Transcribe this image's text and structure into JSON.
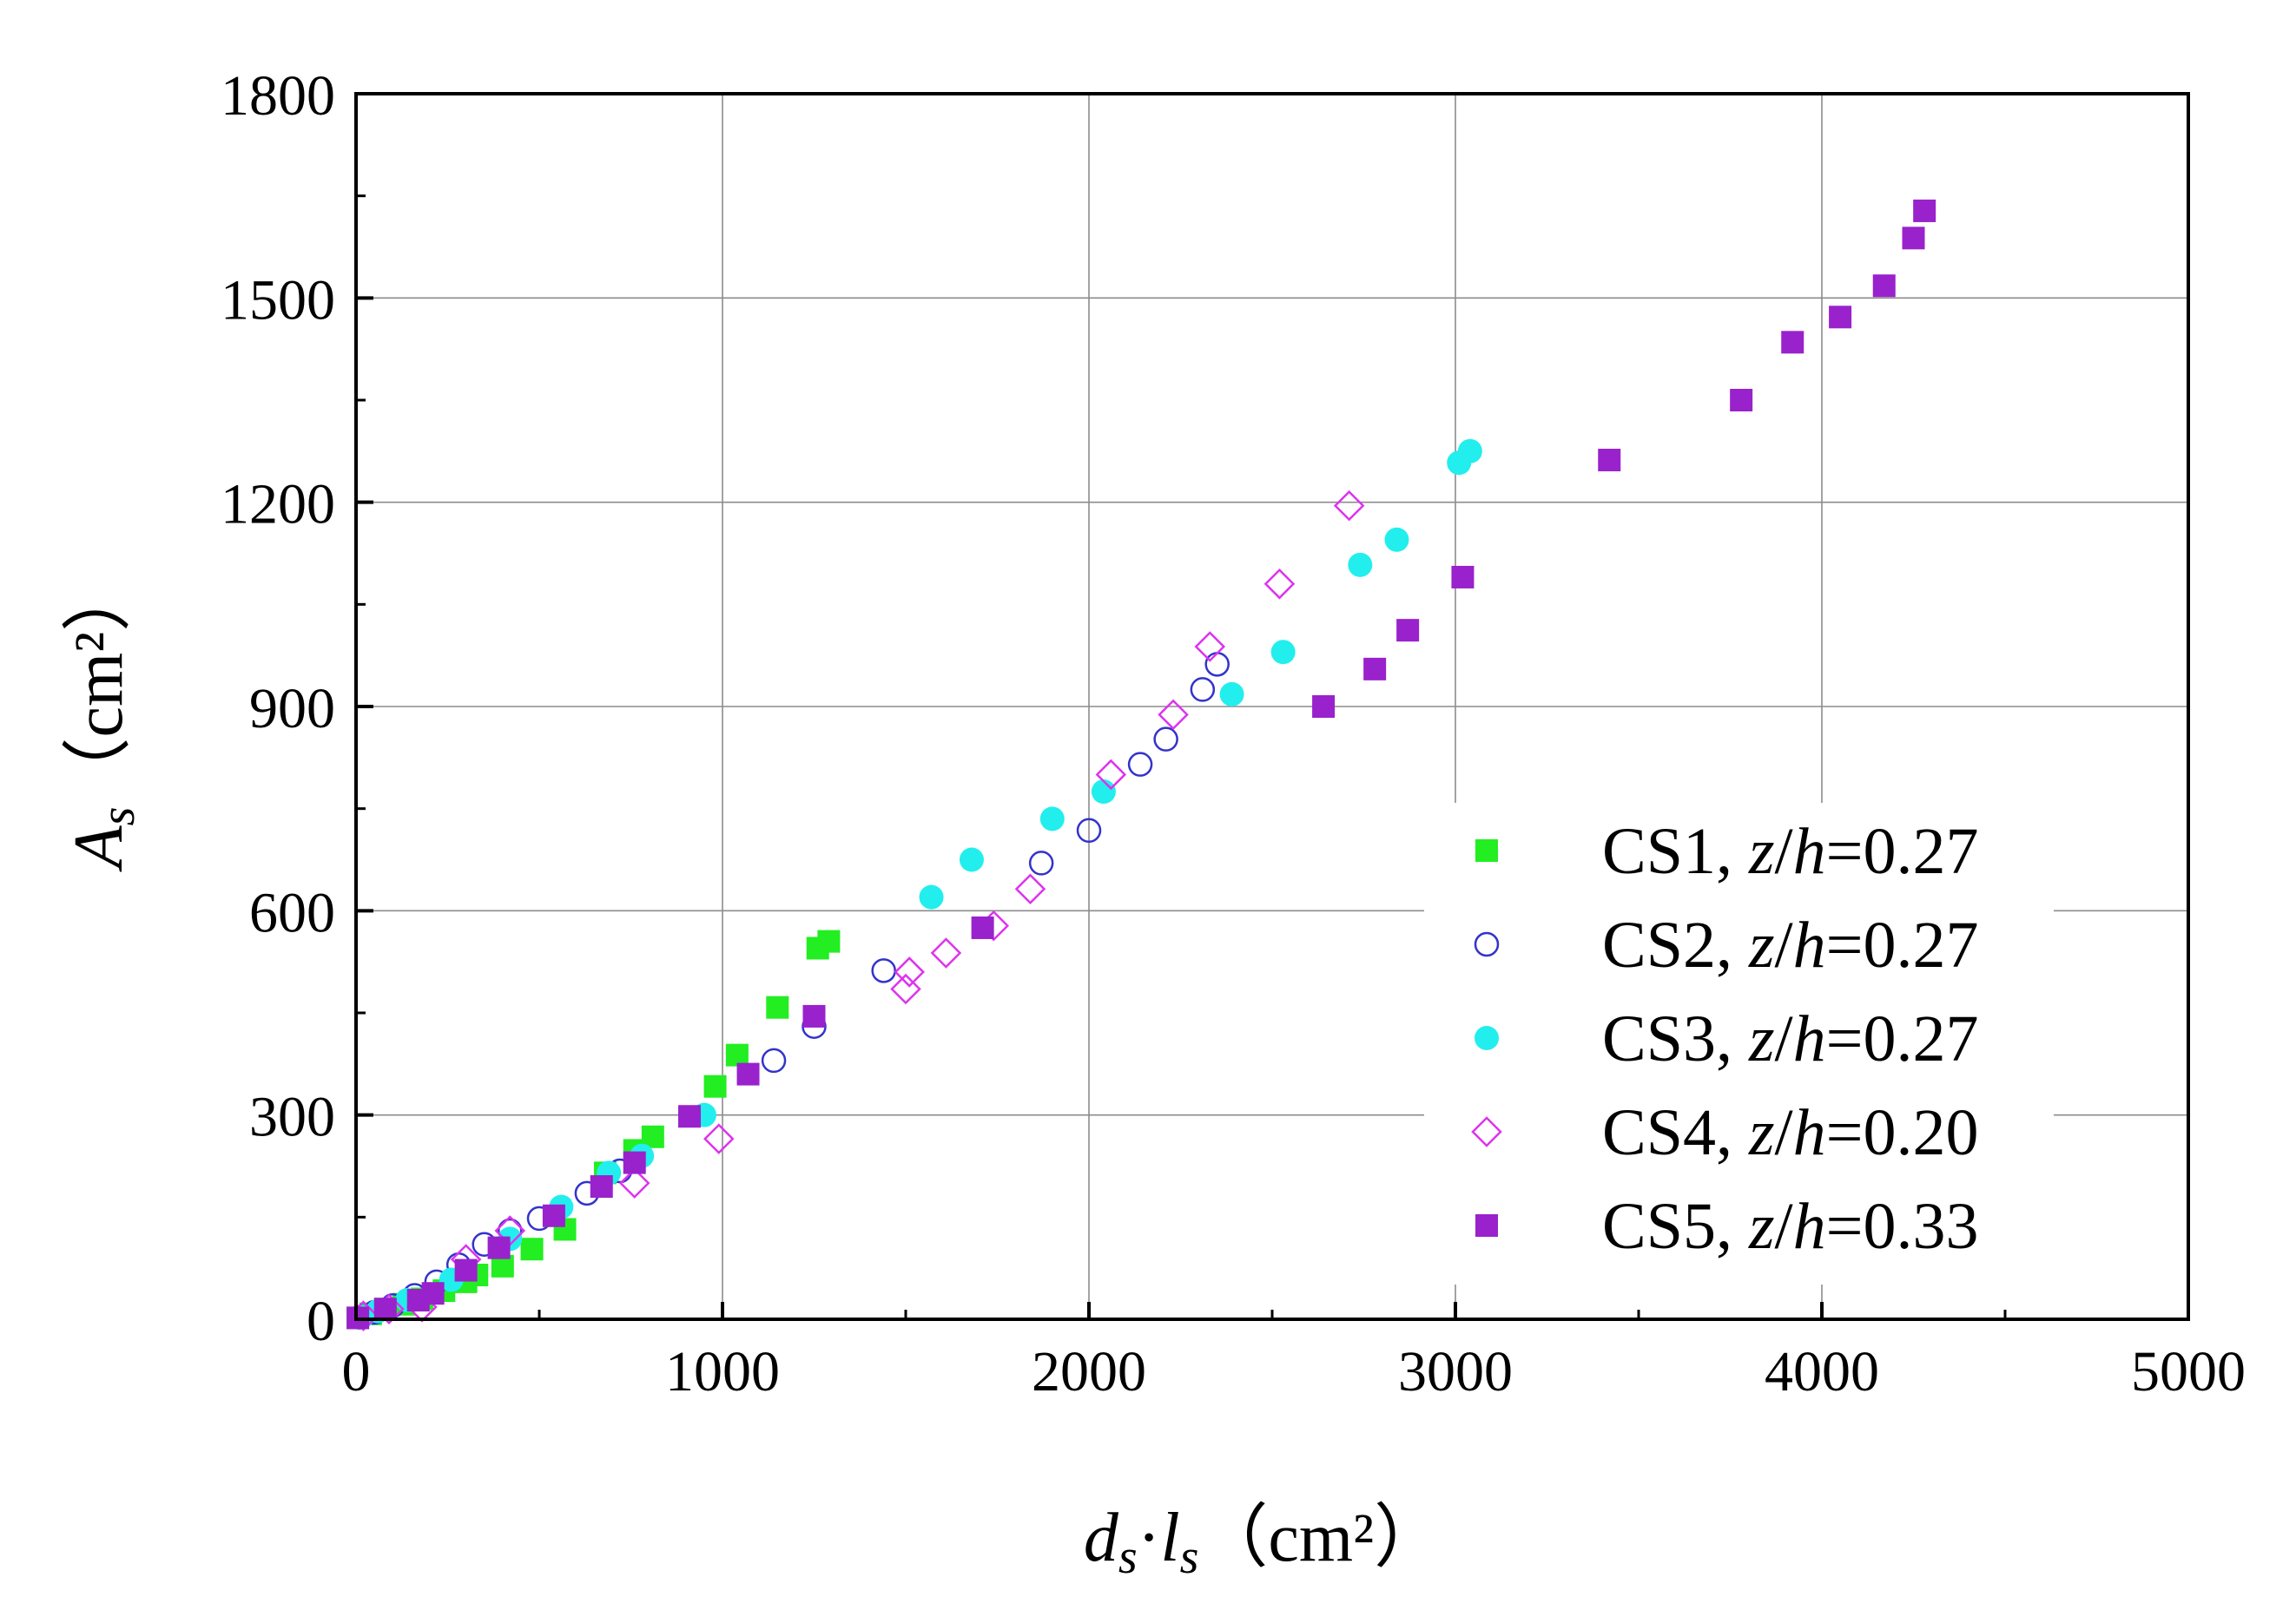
{
  "chart_data": {
    "type": "scatter",
    "title": "",
    "xlabel": "d_s·l_s （cm²）",
    "ylabel": "A_s （cm²）",
    "xlim": [
      0,
      5000
    ],
    "ylim": [
      0,
      1800
    ],
    "grid": true,
    "legend_position": "bottom-right",
    "x_ticks": [
      0,
      1000,
      2000,
      3000,
      4000,
      5000
    ],
    "x_tick_labels": [
      "0",
      "1000",
      "2000",
      "3000",
      "4000",
      "5000"
    ],
    "y_ticks": [
      0,
      300,
      600,
      900,
      1200,
      1500,
      1800
    ],
    "y_tick_labels": [
      "0",
      "300",
      "600",
      "900",
      "1200",
      "1500",
      "1800"
    ],
    "series": [
      {
        "name": "CS1, z/h=0.27",
        "label_prefix": "CS1, ",
        "label_var1": "z",
        "label_slash": "/",
        "label_var2": "h",
        "label_value": "=0.27",
        "marker": "square-filled",
        "color": "#22ee22",
        "points": [
          [
            5,
            2
          ],
          [
            40,
            8
          ],
          [
            80,
            15
          ],
          [
            130,
            22
          ],
          [
            180,
            30
          ],
          [
            240,
            42
          ],
          [
            300,
            55
          ],
          [
            330,
            65
          ],
          [
            400,
            78
          ],
          [
            480,
            103
          ],
          [
            570,
            132
          ],
          [
            680,
            215
          ],
          [
            760,
            248
          ],
          [
            810,
            268
          ],
          [
            980,
            342
          ],
          [
            1040,
            388
          ],
          [
            1150,
            458
          ],
          [
            1260,
            545
          ],
          [
            1290,
            555
          ]
        ]
      },
      {
        "name": "CS2, z/h=0.27",
        "label_prefix": "CS2, ",
        "label_var1": "z",
        "label_slash": "/",
        "label_var2": "h",
        "label_value": "=0.27",
        "marker": "circle-open",
        "color": "#3333cc",
        "points": [
          [
            10,
            3
          ],
          [
            50,
            10
          ],
          [
            100,
            20
          ],
          [
            160,
            35
          ],
          [
            220,
            55
          ],
          [
            280,
            80
          ],
          [
            350,
            110
          ],
          [
            420,
            130
          ],
          [
            500,
            148
          ],
          [
            630,
            185
          ],
          [
            720,
            218
          ],
          [
            1140,
            380
          ],
          [
            1250,
            430
          ],
          [
            1440,
            512
          ],
          [
            1870,
            670
          ],
          [
            2000,
            718
          ],
          [
            2140,
            815
          ],
          [
            2210,
            852
          ],
          [
            2310,
            925
          ],
          [
            2350,
            962
          ]
        ]
      },
      {
        "name": "CS3, z/h=0.27",
        "label_prefix": "CS3, ",
        "label_var1": "z",
        "label_slash": "/",
        "label_var2": "h",
        "label_value": "=0.27",
        "marker": "circle-filled",
        "color": "#22eeee",
        "points": [
          [
            15,
            3
          ],
          [
            60,
            12
          ],
          [
            140,
            28
          ],
          [
            260,
            58
          ],
          [
            420,
            118
          ],
          [
            560,
            165
          ],
          [
            690,
            215
          ],
          [
            780,
            240
          ],
          [
            950,
            300
          ],
          [
            1570,
            620
          ],
          [
            1680,
            675
          ],
          [
            1900,
            735
          ],
          [
            2040,
            775
          ],
          [
            2390,
            918
          ],
          [
            2530,
            980
          ],
          [
            2740,
            1108
          ],
          [
            2840,
            1145
          ],
          [
            3010,
            1258
          ],
          [
            3040,
            1275
          ]
        ]
      },
      {
        "name": "CS4, z/h=0.20",
        "label_prefix": "CS4, ",
        "label_var1": "z",
        "label_slash": "/",
        "label_var2": "h",
        "label_value": "=0.20",
        "marker": "diamond-open",
        "color": "#dd33ee",
        "points": [
          [
            20,
            5
          ],
          [
            90,
            15
          ],
          [
            180,
            18
          ],
          [
            300,
            88
          ],
          [
            420,
            130
          ],
          [
            760,
            200
          ],
          [
            990,
            265
          ],
          [
            1500,
            485
          ],
          [
            1510,
            510
          ],
          [
            1610,
            538
          ],
          [
            1740,
            578
          ],
          [
            1840,
            632
          ],
          [
            2060,
            800
          ],
          [
            2230,
            888
          ],
          [
            2330,
            988
          ],
          [
            2520,
            1080
          ],
          [
            2710,
            1195
          ]
        ]
      },
      {
        "name": "CS5, z/h=0.33",
        "label_prefix": "CS5, ",
        "label_var1": "z",
        "label_slash": "/",
        "label_var2": "h",
        "label_value": "=0.33",
        "marker": "square-filled",
        "color": "#9922cc",
        "points": [
          [
            5,
            2
          ],
          [
            80,
            15
          ],
          [
            170,
            28
          ],
          [
            210,
            38
          ],
          [
            300,
            72
          ],
          [
            390,
            105
          ],
          [
            540,
            152
          ],
          [
            670,
            195
          ],
          [
            760,
            230
          ],
          [
            910,
            298
          ],
          [
            1070,
            360
          ],
          [
            1250,
            445
          ],
          [
            1710,
            575
          ],
          [
            2640,
            900
          ],
          [
            2780,
            955
          ],
          [
            2870,
            1012
          ],
          [
            3020,
            1090
          ],
          [
            3420,
            1262
          ],
          [
            3780,
            1350
          ],
          [
            3920,
            1435
          ],
          [
            4050,
            1472
          ],
          [
            4170,
            1518
          ],
          [
            4250,
            1588
          ],
          [
            4280,
            1628
          ]
        ]
      }
    ]
  }
}
